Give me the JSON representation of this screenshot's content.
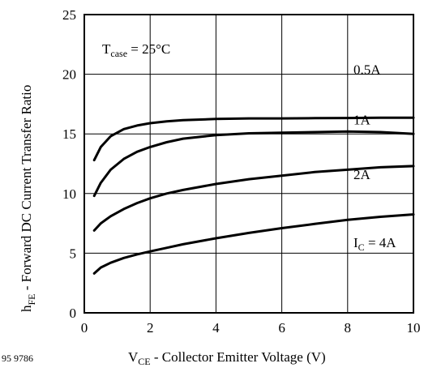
{
  "chart_data": {
    "type": "line",
    "xlabel_main": "V",
    "xlabel_sub": "CE",
    "xlabel_rest": " - Collector Emitter Voltage (V)",
    "ylabel_main": "h",
    "ylabel_sub": "FE",
    "ylabel_rest": " - Forward DC Current Transfer Ratio",
    "annotation": {
      "main": "T",
      "sub": "case",
      "rest": " = 25°C"
    },
    "figure_code": "95 9786",
    "xlim": [
      0,
      10
    ],
    "ylim": [
      0,
      25
    ],
    "xticks": [
      0,
      2,
      4,
      6,
      8,
      10
    ],
    "yticks": [
      0,
      5,
      10,
      15,
      20,
      25
    ],
    "grid": true,
    "series": [
      {
        "name": "0.5A",
        "label_main": "0.5A",
        "label_sub": "",
        "label_rest": "",
        "x": [
          0.3,
          0.5,
          0.8,
          1.2,
          1.6,
          2.0,
          2.5,
          3.0,
          4.0,
          5.0,
          6.0,
          7.0,
          8.0,
          9.0,
          10.0
        ],
        "y": [
          12.8,
          13.9,
          14.8,
          15.4,
          15.7,
          15.9,
          16.05,
          16.15,
          16.25,
          16.3,
          16.3,
          16.32,
          16.33,
          16.35,
          16.35
        ]
      },
      {
        "name": "1A",
        "label_main": "1A",
        "label_sub": "",
        "label_rest": "",
        "x": [
          0.3,
          0.5,
          0.8,
          1.2,
          1.6,
          2.0,
          2.5,
          3.0,
          4.0,
          5.0,
          6.0,
          7.0,
          8.0,
          9.0,
          10.0
        ],
        "y": [
          9.8,
          10.9,
          12.0,
          12.9,
          13.5,
          13.9,
          14.3,
          14.6,
          14.9,
          15.05,
          15.1,
          15.15,
          15.2,
          15.15,
          15.0
        ]
      },
      {
        "name": "2A",
        "label_main": "2A",
        "label_sub": "",
        "label_rest": "",
        "x": [
          0.3,
          0.5,
          0.8,
          1.2,
          1.6,
          2.0,
          2.5,
          3.0,
          4.0,
          5.0,
          6.0,
          7.0,
          8.0,
          9.0,
          10.0
        ],
        "y": [
          6.9,
          7.5,
          8.1,
          8.7,
          9.2,
          9.6,
          10.0,
          10.3,
          10.8,
          11.2,
          11.5,
          11.8,
          12.0,
          12.2,
          12.3
        ]
      },
      {
        "name": "IC = 4A",
        "label_main": "I",
        "label_sub": "C",
        "label_rest": " = 4A",
        "x": [
          0.3,
          0.5,
          0.8,
          1.2,
          1.6,
          2.0,
          2.5,
          3.0,
          4.0,
          5.0,
          6.0,
          7.0,
          8.0,
          9.0,
          10.0
        ],
        "y": [
          3.3,
          3.8,
          4.2,
          4.6,
          4.9,
          5.15,
          5.45,
          5.75,
          6.25,
          6.7,
          7.1,
          7.45,
          7.8,
          8.05,
          8.25
        ]
      }
    ]
  }
}
